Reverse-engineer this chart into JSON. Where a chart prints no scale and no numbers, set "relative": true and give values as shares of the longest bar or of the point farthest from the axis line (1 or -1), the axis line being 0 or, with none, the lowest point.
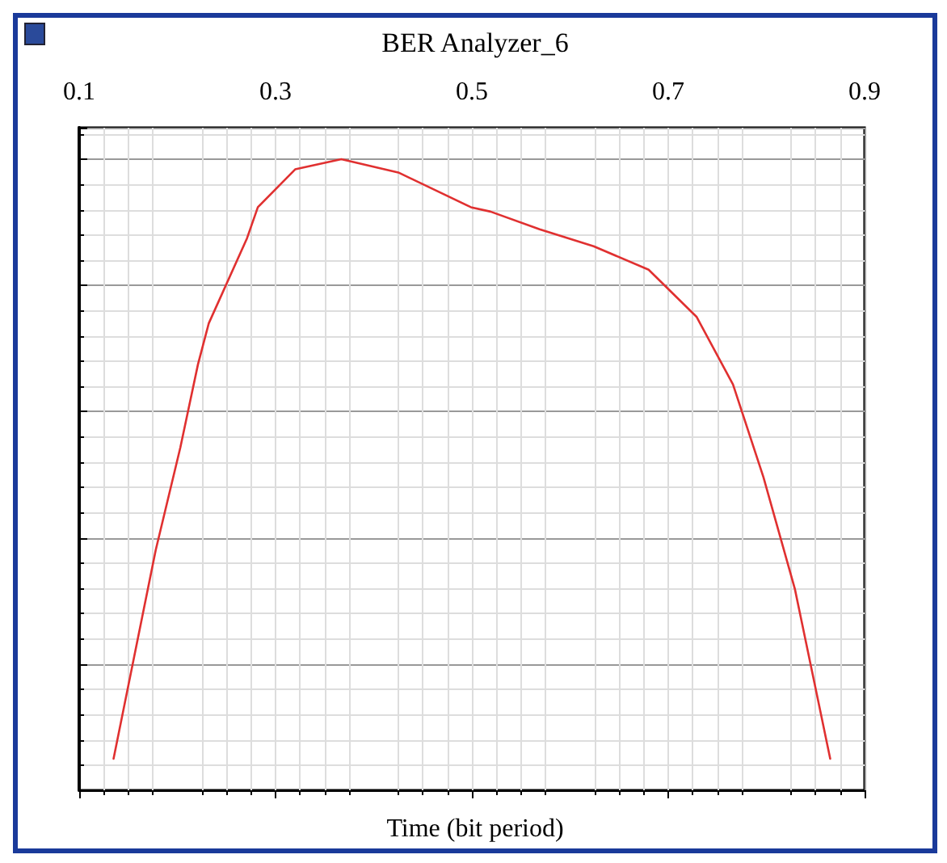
{
  "chart_data": {
    "type": "line",
    "title": "BER Analyzer_6",
    "xlabel": "Time (bit period)",
    "relative": true,
    "x": [
      0.135,
      0.178,
      0.203,
      0.221,
      0.232,
      0.271,
      0.282,
      0.32,
      0.367,
      0.425,
      0.499,
      0.519,
      0.569,
      0.624,
      0.68,
      0.729,
      0.766,
      0.797,
      0.829,
      0.865
    ],
    "series": [
      {
        "color": "#e03030",
        "values": [
          0.05,
          0.381,
          0.543,
          0.675,
          0.74,
          0.875,
          0.924,
          0.984,
          1.0,
          0.979,
          0.924,
          0.917,
          0.889,
          0.862,
          0.825,
          0.75,
          0.643,
          0.496,
          0.319,
          0.05
        ]
      }
    ],
    "xlim": [
      0.1,
      0.9
    ],
    "xticks": [
      0.1,
      0.3,
      0.5,
      0.7,
      0.9
    ],
    "grid": true,
    "tick_labels": "x",
    "marker": "none",
    "line_style": "solid"
  }
}
